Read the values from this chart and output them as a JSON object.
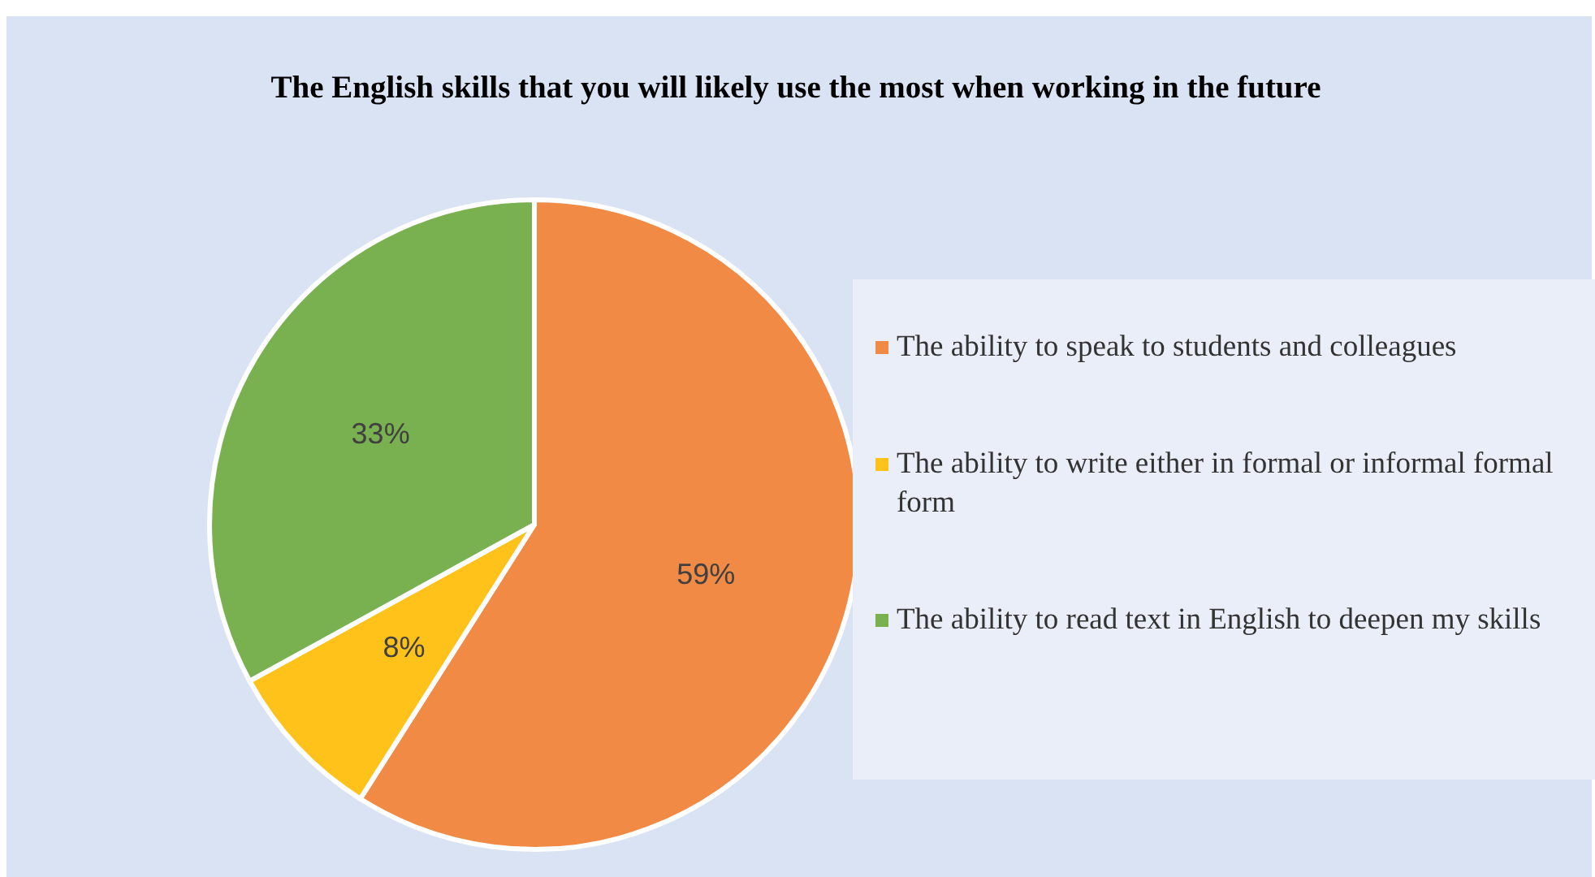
{
  "chart_data": {
    "type": "pie",
    "title": "The English skills that you will likely use the most when working in the future",
    "categories": [
      "The ability to speak to students and colleagues",
      "The ability to write either in formal or informal formal form",
      "The ability to read text in English to deepen my skills"
    ],
    "values": [
      59,
      8,
      33
    ],
    "colors": [
      "#f08a44",
      "#ffc21a",
      "#7ab150"
    ],
    "value_labels": [
      "59%",
      "8%",
      "33%"
    ],
    "legend": "right"
  }
}
